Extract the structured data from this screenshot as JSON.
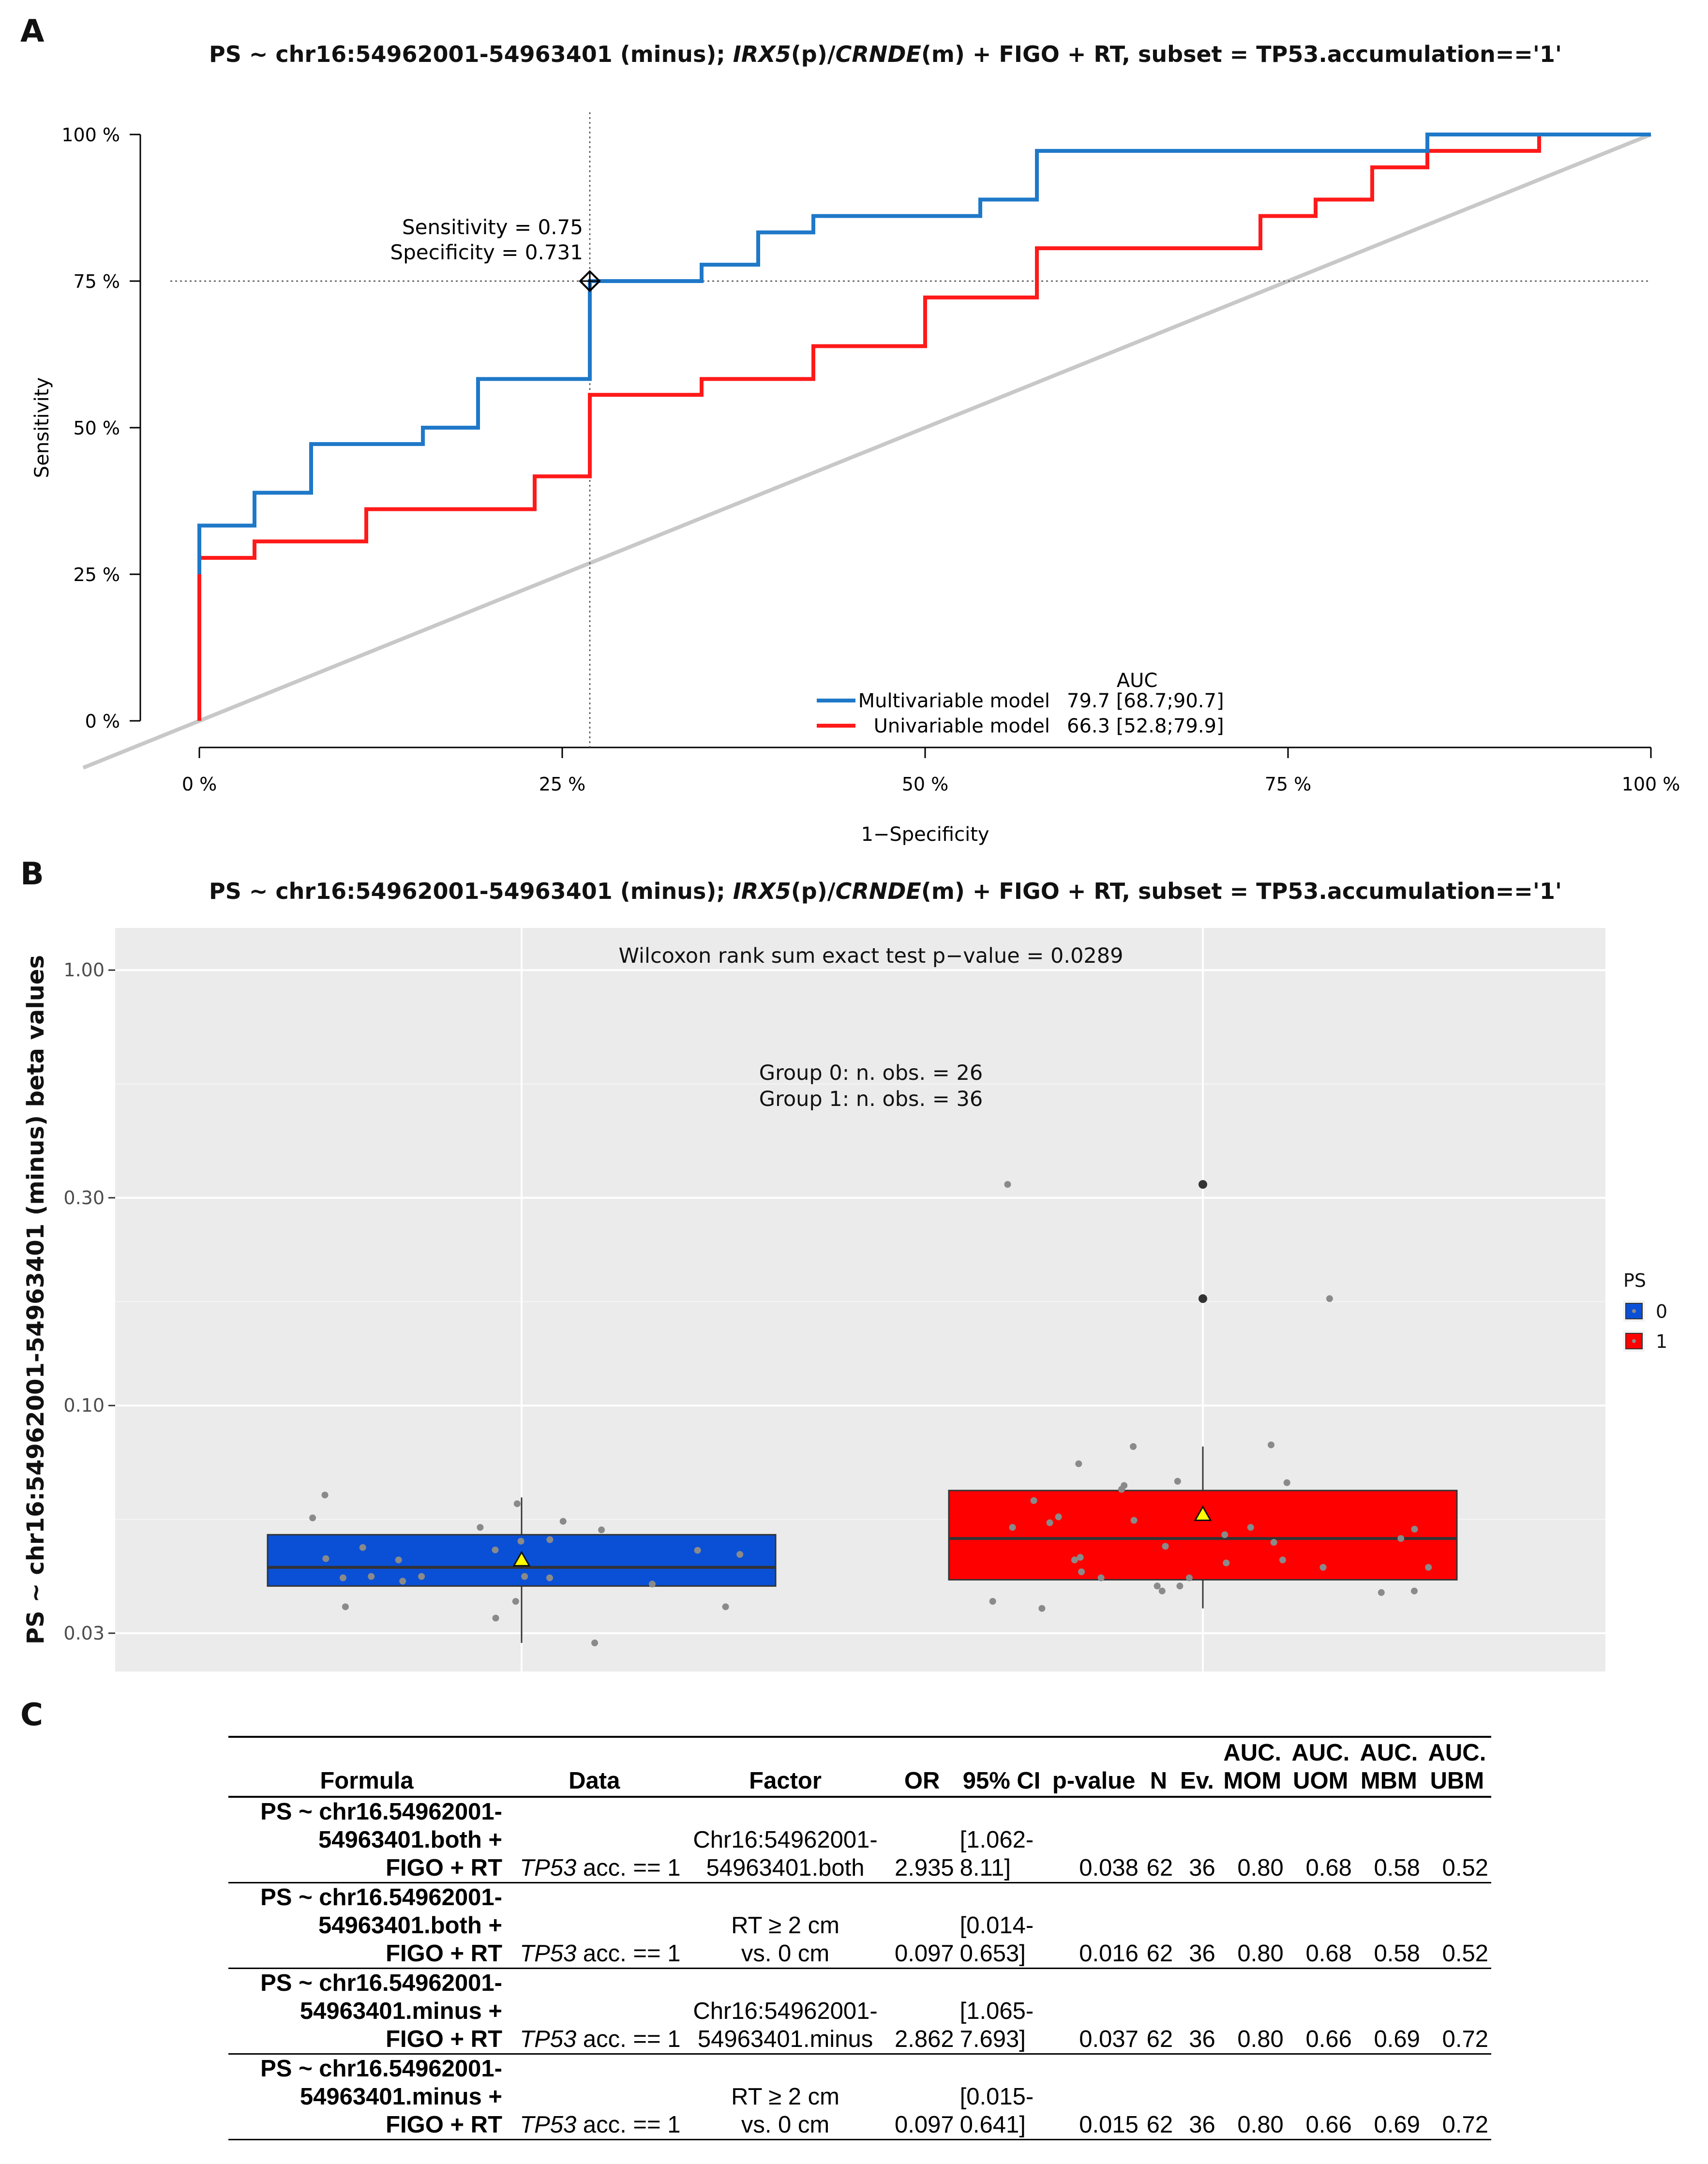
{
  "panels": {
    "a_letter": "A",
    "b_letter": "B",
    "c_letter": "C"
  },
  "chart_data": [
    {
      "type": "line",
      "title_parts": [
        {
          "text": "PS ~ chr16:54962001-54963401 (minus); ",
          "italic": false
        },
        {
          "text": "IRX5",
          "italic": true
        },
        {
          "text": "(p)/",
          "italic": false
        },
        {
          "text": "CRNDE",
          "italic": true
        },
        {
          "text": "(m) + FIGO + RT, subset = TP53.accumulation=='1'",
          "italic": false
        }
      ],
      "xlabel": "1−Specificity",
      "ylabel": "Sensitivity",
      "xlim": [
        0,
        1
      ],
      "ylim": [
        0,
        1
      ],
      "x_ticks": [
        0,
        0.25,
        0.5,
        0.75,
        1
      ],
      "x_tick_labels": [
        "0 %",
        "25 %",
        "50 %",
        "75 %",
        "100 %"
      ],
      "y_ticks": [
        0,
        0.25,
        0.5,
        0.75,
        1
      ],
      "y_tick_labels": [
        "0 %",
        "25 %",
        "50 %",
        "75 %",
        "100 %"
      ],
      "threshold_point": {
        "x": 0.269,
        "y": 0.75
      },
      "annotation_lines": [
        "Sensitivity = 0.75",
        "Specificity = 0.731"
      ],
      "diagonal_color": "#c8c8c8",
      "legend": {
        "title": "AUC",
        "position": "bottom-right",
        "entries": [
          {
            "name": "Multivariable model",
            "auc": "79.7 [68.7;90.7]",
            "color": "#1f78c8"
          },
          {
            "name": "Univariable model",
            "auc": "66.3 [52.8;79.9]",
            "color": "#ff1a1a"
          }
        ]
      },
      "series": [
        {
          "name": "Multivariable model",
          "color": "#1f78c8",
          "points": [
            [
              0,
              0.25
            ],
            [
              0,
              0.333
            ],
            [
              0.038,
              0.333
            ],
            [
              0.038,
              0.389
            ],
            [
              0.077,
              0.389
            ],
            [
              0.077,
              0.472
            ],
            [
              0.154,
              0.472
            ],
            [
              0.154,
              0.5
            ],
            [
              0.192,
              0.5
            ],
            [
              0.192,
              0.583
            ],
            [
              0.269,
              0.583
            ],
            [
              0.269,
              0.75
            ],
            [
              0.346,
              0.75
            ],
            [
              0.346,
              0.778
            ],
            [
              0.385,
              0.778
            ],
            [
              0.385,
              0.833
            ],
            [
              0.423,
              0.833
            ],
            [
              0.423,
              0.861
            ],
            [
              0.538,
              0.861
            ],
            [
              0.538,
              0.889
            ],
            [
              0.577,
              0.889
            ],
            [
              0.577,
              0.972
            ],
            [
              0.846,
              0.972
            ],
            [
              0.846,
              1
            ],
            [
              1,
              1
            ]
          ]
        },
        {
          "name": "Univariable model",
          "color": "#ff1a1a",
          "points": [
            [
              0,
              0
            ],
            [
              0,
              0.278
            ],
            [
              0.038,
              0.278
            ],
            [
              0.038,
              0.306
            ],
            [
              0.115,
              0.306
            ],
            [
              0.115,
              0.361
            ],
            [
              0.231,
              0.361
            ],
            [
              0.231,
              0.417
            ],
            [
              0.269,
              0.417
            ],
            [
              0.269,
              0.556
            ],
            [
              0.346,
              0.556
            ],
            [
              0.346,
              0.583
            ],
            [
              0.423,
              0.583
            ],
            [
              0.423,
              0.639
            ],
            [
              0.5,
              0.639
            ],
            [
              0.5,
              0.722
            ],
            [
              0.577,
              0.722
            ],
            [
              0.577,
              0.806
            ],
            [
              0.731,
              0.806
            ],
            [
              0.731,
              0.861
            ],
            [
              0.769,
              0.861
            ],
            [
              0.769,
              0.889
            ],
            [
              0.808,
              0.889
            ],
            [
              0.808,
              0.944
            ],
            [
              0.846,
              0.944
            ],
            [
              0.846,
              0.972
            ],
            [
              0.923,
              0.972
            ],
            [
              0.923,
              1
            ],
            [
              1,
              1
            ]
          ]
        }
      ]
    },
    {
      "type": "box",
      "title_parts": [
        {
          "text": "PS ~ chr16:54962001-54963401 (minus); ",
          "italic": false
        },
        {
          "text": "IRX5",
          "italic": true
        },
        {
          "text": "(p)/",
          "italic": false
        },
        {
          "text": "CRNDE",
          "italic": true
        },
        {
          "text": "(m) + FIGO + RT, subset = TP53.accumulation=='1'",
          "italic": false
        }
      ],
      "ylabel": "PS ~ chr16:54962001-54963401 (minus) beta values",
      "y_scale": "log10",
      "ylim": [
        0.0245,
        1.25
      ],
      "y_ticks": [
        0.03,
        0.1,
        0.3,
        1.0
      ],
      "y_tick_labels": [
        "0.03",
        "0.10",
        "0.30",
        "1.00"
      ],
      "annotations": [
        "Wilcoxon rank sum exact test p−value = 0.0289",
        "Group 0: n. obs. = 26",
        "Group 1: n. obs. = 36"
      ],
      "legend": {
        "title": "PS",
        "position": "right",
        "entries": [
          {
            "label": "0",
            "color": "#0a50d6"
          },
          {
            "label": "1",
            "color": "#ff0000"
          }
        ]
      },
      "groups": [
        {
          "label": "0",
          "color": "#0a50d6",
          "q1": 0.0385,
          "median": 0.0425,
          "q3": 0.0505,
          "whisker_low": 0.0285,
          "whisker_high": 0.0615,
          "mean": 0.0442,
          "outliers": [],
          "points": [
            0.0595,
            0.0492,
            0.0402,
            0.0395,
            0.0466,
            0.0405,
            0.0445,
            0.0465,
            0.0542,
            0.0525,
            0.0405,
            0.0389,
            0.0285,
            0.0623,
            0.0488,
            0.0442,
            0.0518,
            0.0472,
            0.0402,
            0.0355,
            0.0405,
            0.0552,
            0.0345,
            0.0455,
            0.0345,
            0.0325
          ]
        },
        {
          "label": "1",
          "color": "#ff0000",
          "q1": 0.0398,
          "median": 0.0495,
          "q3": 0.0638,
          "whisker_low": 0.0342,
          "whisker_high": 0.0805,
          "mean": 0.0562,
          "outliers": [
            0.322,
            0.176
          ],
          "points": [
            0.052,
            0.0555,
            0.0475,
            0.0435,
            0.0442,
            0.0402,
            0.0538,
            0.0425,
            0.067,
            0.0735,
            0.0505,
            0.0655,
            0.0342,
            0.176,
            0.0545,
            0.0805,
            0.322,
            0.0495,
            0.0415,
            0.0372,
            0.0402,
            0.0448,
            0.0525,
            0.0385,
            0.0425,
            0.0485,
            0.0605,
            0.0442,
            0.0385,
            0.0525,
            0.0355,
            0.0375,
            0.0665,
            0.0812,
            0.0375,
            0.0642
          ]
        }
      ]
    }
  ],
  "table": {
    "headers": {
      "formula": "Formula",
      "data": "Data",
      "factor": "Factor",
      "or": "OR",
      "ci": "95% CI",
      "p": "p-value",
      "n": "N",
      "ev": "Ev.",
      "auc_mom": "AUC.\nMOM",
      "auc_uom": "AUC.\nUOM",
      "auc_mbm": "AUC.\nMBM",
      "auc_ubm": "AUC.\nUBM"
    },
    "rows": [
      {
        "formula": "PS ~ chr16.54962001-\n54963401.both +\nFIGO + RT",
        "data_italic": "TP53",
        "data_rest": " acc. == 1",
        "factor": "Chr16:54962001-\n54963401.both",
        "or": "2.935",
        "ci": "[1.062-\n8.11]",
        "p": "0.038",
        "n": "62",
        "ev": "36",
        "auc_mom": "0.80",
        "auc_uom": "0.68",
        "auc_mbm": "0.58",
        "auc_ubm": "0.52"
      },
      {
        "formula": "PS ~ chr16.54962001-\n54963401.both +\nFIGO + RT",
        "data_italic": "TP53",
        "data_rest": " acc. == 1",
        "factor": "RT ≥ 2 cm\nvs. 0 cm",
        "or": "0.097",
        "ci": "[0.014-\n0.653]",
        "p": "0.016",
        "n": "62",
        "ev": "36",
        "auc_mom": "0.80",
        "auc_uom": "0.68",
        "auc_mbm": "0.58",
        "auc_ubm": "0.52"
      },
      {
        "formula": "PS ~ chr16.54962001-\n54963401.minus +\nFIGO + RT",
        "data_italic": "TP53",
        "data_rest": " acc. == 1",
        "factor": "Chr16:54962001-\n54963401.minus",
        "or": "2.862",
        "ci": "[1.065-\n7.693]",
        "p": "0.037",
        "n": "62",
        "ev": "36",
        "auc_mom": "0.80",
        "auc_uom": "0.66",
        "auc_mbm": "0.69",
        "auc_ubm": "0.72"
      },
      {
        "formula": "PS ~ chr16.54962001-\n54963401.minus +\nFIGO + RT",
        "data_italic": "TP53",
        "data_rest": " acc. == 1",
        "factor": "RT ≥ 2 cm\nvs. 0 cm",
        "or": "0.097",
        "ci": "[0.015-\n0.641]",
        "p": "0.015",
        "n": "62",
        "ev": "36",
        "auc_mom": "0.80",
        "auc_uom": "0.66",
        "auc_mbm": "0.69",
        "auc_ubm": "0.72"
      }
    ]
  }
}
